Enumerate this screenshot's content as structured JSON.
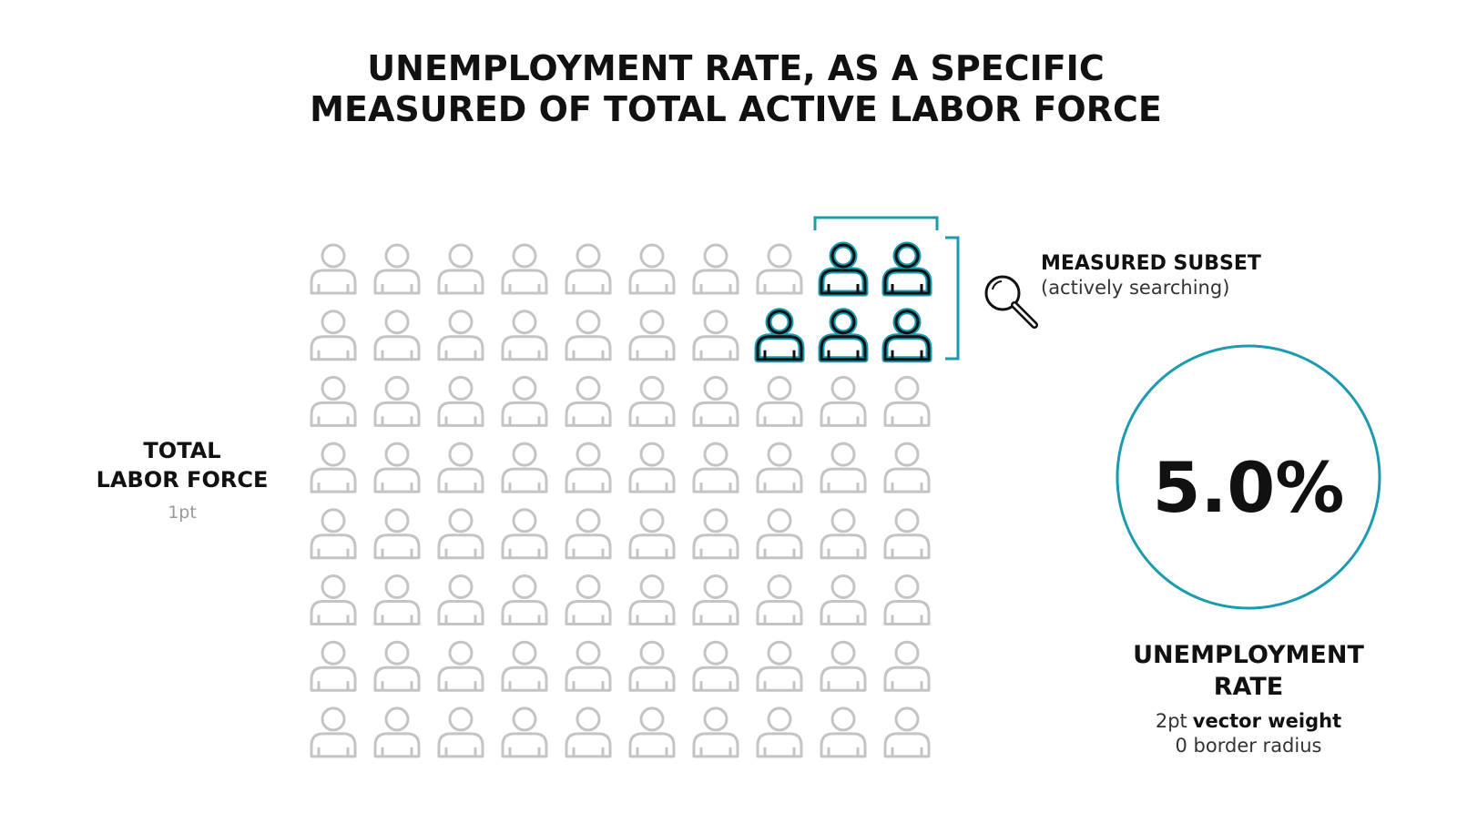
{
  "title": {
    "lines": [
      "UNEMPLOYMENT RATE, AS A SPECIFIC",
      "MEASURED OF TOTAL ACTIVE LABOR FORCE"
    ]
  },
  "labor_force": {
    "lines": [
      "TOTAL",
      "LABOR FORCE"
    ],
    "note": "1pt"
  },
  "subset": {
    "label": "MEASURED SUBSET",
    "note": "(actively searching)"
  },
  "rate": {
    "value_text": "5.0%",
    "label_lines": [
      "UNEMPLOYMENT",
      "RATE"
    ],
    "note_parts": [
      "2pt",
      "vector weight"
    ],
    "note_line2": "0 border radius"
  }
}
